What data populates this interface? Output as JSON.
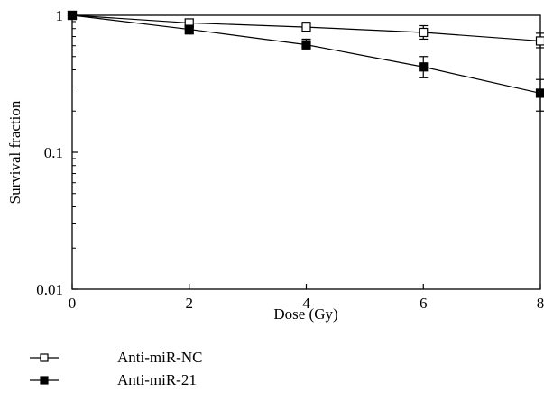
{
  "chart_data": {
    "type": "line",
    "xlabel": "Dose (Gy)",
    "ylabel": "Survival fraction",
    "xlim": [
      0,
      8
    ],
    "ylim": [
      0.01,
      1
    ],
    "yscale": "log",
    "x_ticks": [
      0,
      2,
      4,
      6,
      8
    ],
    "x_tick_labels": [
      "0",
      "2",
      "4",
      "6",
      "8"
    ],
    "y_ticks": [
      0.01,
      0.1,
      1
    ],
    "y_tick_labels": [
      "0.01",
      "0.1",
      "1"
    ],
    "grid": false,
    "legend_position": "bottom-left",
    "series": [
      {
        "name": "Anti-miR-NC",
        "marker": "open-square",
        "x": [
          0,
          2,
          4,
          6,
          8
        ],
        "y": [
          1.0,
          0.88,
          0.82,
          0.75,
          0.65
        ],
        "err_low": [
          0,
          0.06,
          0.06,
          0.08,
          0.07
        ],
        "err_high": [
          0,
          0.06,
          0.07,
          0.09,
          0.09
        ]
      },
      {
        "name": "Anti-miR-21",
        "marker": "filled-square",
        "x": [
          0,
          2,
          4,
          6,
          8
        ],
        "y": [
          1.0,
          0.79,
          0.61,
          0.42,
          0.27
        ],
        "err_low": [
          0,
          0.06,
          0.05,
          0.07,
          0.07
        ],
        "err_high": [
          0,
          0.06,
          0.06,
          0.08,
          0.07
        ]
      }
    ]
  }
}
